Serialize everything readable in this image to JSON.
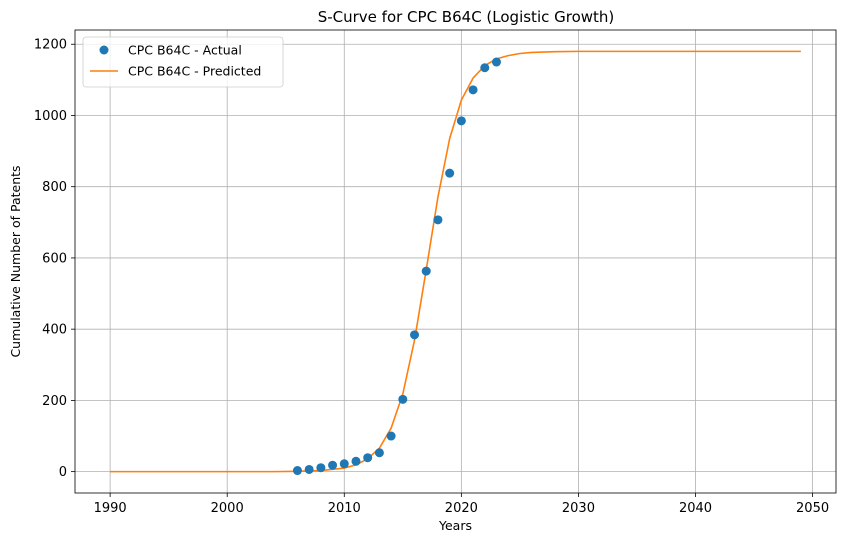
{
  "chart_data": {
    "type": "line",
    "title": "S-Curve for CPC B64C (Logistic Growth)",
    "xlabel": "Years",
    "ylabel": "Cumulative Number of Patents",
    "xlim": [
      1987,
      2052
    ],
    "ylim": [
      -60,
      1240
    ],
    "x_ticks": [
      1990,
      2000,
      2010,
      2020,
      2030,
      2040,
      2050
    ],
    "y_ticks": [
      0,
      200,
      400,
      600,
      800,
      1000,
      1200
    ],
    "grid": true,
    "legend_position": "top-left",
    "series": [
      {
        "name": "CPC B64C - Actual",
        "style": "scatter",
        "color": "#1f77b4",
        "x": [
          2006,
          2007,
          2008,
          2009,
          2010,
          2011,
          2012,
          2013,
          2014,
          2015,
          2016,
          2017,
          2018,
          2019,
          2020,
          2021,
          2022,
          2023
        ],
        "y": [
          3,
          6,
          11,
          18,
          22,
          29,
          39,
          53,
          100,
          203,
          384,
          563,
          707,
          838,
          985,
          1072,
          1134,
          1150
        ]
      },
      {
        "name": "CPC B64C - Predicted",
        "style": "line",
        "color": "#ff7f0e",
        "model": "logistic",
        "x": [
          1990,
          1995,
          2000,
          2004,
          2006,
          2008,
          2010,
          2011,
          2012,
          2013,
          2014,
          2015,
          2016,
          2017,
          2018,
          2019,
          2020,
          2021,
          2022,
          2023,
          2024,
          2025,
          2026,
          2027,
          2028,
          2030,
          2035,
          2040,
          2045,
          2049
        ],
        "y": [
          0,
          0,
          0,
          0,
          1,
          3,
          10,
          19,
          36,
          66,
          122,
          218,
          369,
          567,
          771,
          935,
          1043,
          1105,
          1140,
          1159,
          1168,
          1174,
          1177,
          1178,
          1179,
          1180,
          1180,
          1180,
          1180,
          1180
        ]
      }
    ]
  }
}
